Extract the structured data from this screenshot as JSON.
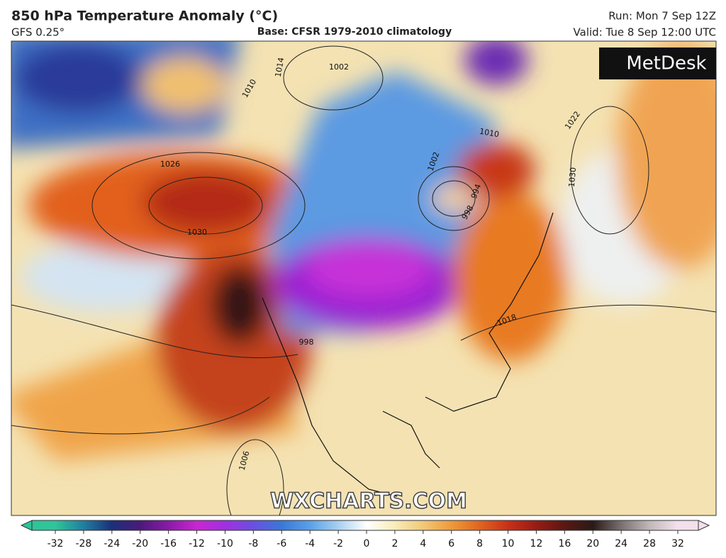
{
  "header": {
    "title": "850 hPa Temperature Anomaly (°C)",
    "model": "GFS 0.25°",
    "base": "Base: CFSR 1979-2010 climatology",
    "run": "Run: Mon 7 Sep 12Z",
    "valid": "Valid: Tue 8 Sep 12:00 UTC"
  },
  "logo": "MetDesk",
  "watermark": "WXCHARTS.COM",
  "isobar_labels": [
    "1014",
    "1002",
    "1010",
    "1026",
    "1030",
    "1022",
    "1030",
    "1018",
    "998",
    "1006",
    "994",
    "998",
    "1002",
    "1010"
  ],
  "colorbar": {
    "ticks": [
      -32,
      -28,
      -24,
      -20,
      -16,
      -12,
      -10,
      -8,
      -6,
      -4,
      -2,
      0,
      2,
      4,
      6,
      8,
      10,
      12,
      16,
      20,
      24,
      28,
      32
    ],
    "colors": [
      "#2fc49a",
      "#1f7f9f",
      "#1b2f7a",
      "#4a1a7a",
      "#8a1aa8",
      "#c826d0",
      "#a030e0",
      "#6a50e0",
      "#3a78d8",
      "#5aa0e8",
      "#a8d0f0",
      "#ffffff",
      "#f8ecb8",
      "#f2c878",
      "#ee9a3a",
      "#e06420",
      "#c83018",
      "#961c14",
      "#5a1812",
      "#2a1a18",
      "#7a7070",
      "#c0b8b8",
      "#f4e0ec"
    ]
  }
}
